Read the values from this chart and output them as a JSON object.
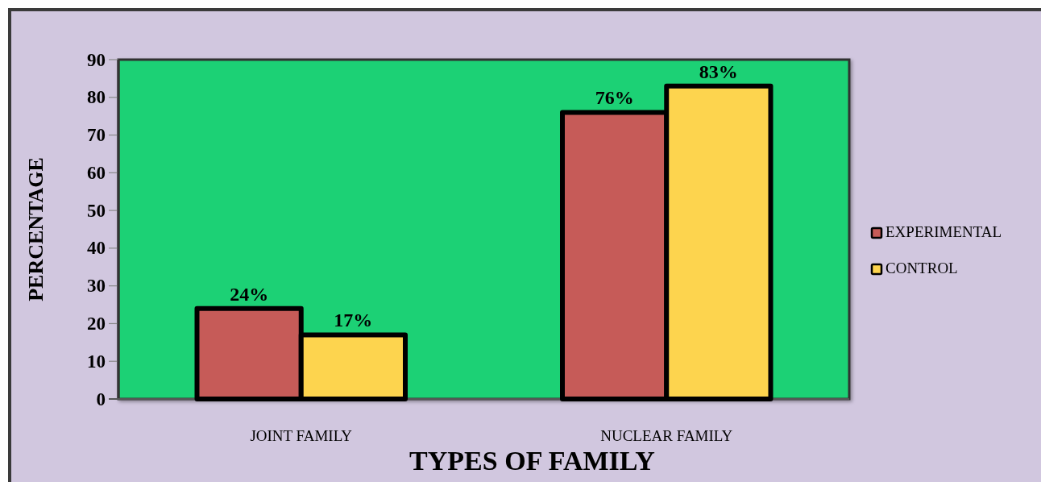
{
  "chart_data": {
    "type": "bar",
    "xlabel": "TYPES OF FAMILY",
    "ylabel": "PERCENTAGE",
    "categories": [
      "JOINT FAMILY",
      "NUCLEAR FAMILY"
    ],
    "series": [
      {
        "name": "EXPERIMENTAL",
        "color": "#c65b58",
        "values": [
          24,
          76
        ],
        "value_labels": [
          "24%",
          "76%"
        ]
      },
      {
        "name": "CONTROL",
        "color": "#fdd44e",
        "values": [
          17,
          83
        ],
        "value_labels": [
          "17%",
          "83%"
        ]
      }
    ],
    "ylim": [
      0,
      90
    ],
    "yticks": [
      0,
      10,
      20,
      30,
      40,
      50,
      60,
      70,
      80,
      90
    ],
    "legend": "right"
  }
}
